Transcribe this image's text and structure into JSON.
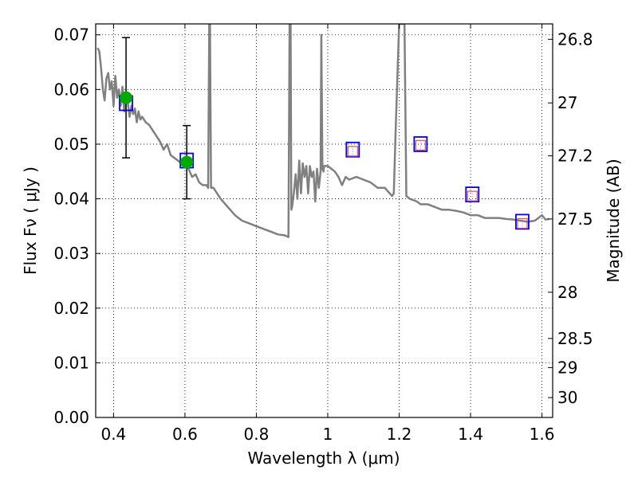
{
  "chart_data": {
    "type": "line",
    "xlabel": "Wavelength  λ (μm)",
    "ylabel": "Flux  Fν  ( μJy )",
    "ylabel_right": "Magnitude (AB)",
    "xlim": [
      0.35,
      1.63
    ],
    "ylim": [
      0.0,
      0.072
    ],
    "grid": true,
    "x_ticks": [
      {
        "value": 0.4,
        "label": "0.4"
      },
      {
        "value": 0.6,
        "label": "0.6"
      },
      {
        "value": 0.8,
        "label": "0.8"
      },
      {
        "value": 1.0,
        "label": "1"
      },
      {
        "value": 1.2,
        "label": "1.2"
      },
      {
        "value": 1.4,
        "label": "1.4"
      },
      {
        "value": 1.6,
        "label": "1.6"
      }
    ],
    "y_ticks": [
      {
        "value": 0.0,
        "label": "0.00"
      },
      {
        "value": 0.01,
        "label": "0.01"
      },
      {
        "value": 0.02,
        "label": "0.02"
      },
      {
        "value": 0.03,
        "label": "0.03"
      },
      {
        "value": 0.04,
        "label": "0.04"
      },
      {
        "value": 0.05,
        "label": "0.05"
      },
      {
        "value": 0.06,
        "label": "0.06"
      },
      {
        "value": 0.07,
        "label": "0.07"
      }
    ],
    "mag_ticks": [
      {
        "mag": 26.8,
        "label": "26.8"
      },
      {
        "mag": 27.0,
        "label": "27"
      },
      {
        "mag": 27.2,
        "label": "27.2"
      },
      {
        "mag": 27.5,
        "label": "27.5"
      },
      {
        "mag": 28.0,
        "label": "28"
      },
      {
        "mag": 28.5,
        "label": "28.5"
      },
      {
        "mag": 29.0,
        "label": "29"
      },
      {
        "mag": 30.0,
        "label": "30"
      }
    ],
    "model_sed": {
      "color": "#808080",
      "x": [
        0.355,
        0.36,
        0.365,
        0.37,
        0.375,
        0.38,
        0.385,
        0.39,
        0.395,
        0.4,
        0.405,
        0.41,
        0.415,
        0.42,
        0.425,
        0.43,
        0.435,
        0.44,
        0.445,
        0.45,
        0.455,
        0.46,
        0.465,
        0.47,
        0.475,
        0.48,
        0.49,
        0.5,
        0.51,
        0.52,
        0.53,
        0.54,
        0.55,
        0.56,
        0.57,
        0.58,
        0.59,
        0.6,
        0.61,
        0.62,
        0.63,
        0.64,
        0.65,
        0.66,
        0.665,
        0.668,
        0.67,
        0.673,
        0.68,
        0.7,
        0.72,
        0.74,
        0.76,
        0.78,
        0.8,
        0.82,
        0.84,
        0.86,
        0.88,
        0.89,
        0.893,
        0.896,
        0.898,
        0.9,
        0.905,
        0.91,
        0.915,
        0.92,
        0.925,
        0.93,
        0.935,
        0.94,
        0.945,
        0.95,
        0.955,
        0.96,
        0.965,
        0.97,
        0.975,
        0.98,
        0.982,
        0.985,
        0.988,
        0.99,
        1.0,
        1.01,
        1.02,
        1.03,
        1.04,
        1.05,
        1.06,
        1.08,
        1.1,
        1.12,
        1.14,
        1.16,
        1.18,
        1.185,
        1.19,
        1.2,
        1.205,
        1.215,
        1.22,
        1.23,
        1.25,
        1.26,
        1.28,
        1.3,
        1.32,
        1.34,
        1.36,
        1.38,
        1.4,
        1.42,
        1.44,
        1.46,
        1.48,
        1.5,
        1.52,
        1.54,
        1.56,
        1.58,
        1.59,
        1.6,
        1.61,
        1.62
      ],
      "y": [
        0.0676,
        0.067,
        0.064,
        0.06,
        0.058,
        0.062,
        0.063,
        0.06,
        0.0615,
        0.057,
        0.0625,
        0.0585,
        0.06,
        0.057,
        0.0605,
        0.056,
        0.059,
        0.0575,
        0.055,
        0.057,
        0.0555,
        0.0565,
        0.054,
        0.056,
        0.0545,
        0.055,
        0.054,
        0.0535,
        0.0525,
        0.0515,
        0.0505,
        0.049,
        0.05,
        0.048,
        0.0475,
        0.047,
        0.0465,
        0.046,
        0.0455,
        0.044,
        0.0445,
        0.043,
        0.0425,
        0.0425,
        0.042,
        0.072,
        0.072,
        0.042,
        0.042,
        0.04,
        0.0385,
        0.037,
        0.036,
        0.0355,
        0.035,
        0.0345,
        0.034,
        0.0335,
        0.0333,
        0.033,
        0.072,
        0.072,
        0.038,
        0.0385,
        0.041,
        0.0445,
        0.04,
        0.047,
        0.041,
        0.0465,
        0.044,
        0.046,
        0.041,
        0.046,
        0.044,
        0.045,
        0.0395,
        0.0455,
        0.042,
        0.045,
        0.07,
        0.0455,
        0.045,
        0.046,
        0.046,
        0.0455,
        0.045,
        0.044,
        0.0425,
        0.044,
        0.0435,
        0.044,
        0.0435,
        0.043,
        0.042,
        0.042,
        0.0405,
        0.041,
        0.052,
        0.072,
        0.072,
        0.072,
        0.0405,
        0.04,
        0.0395,
        0.039,
        0.039,
        0.0385,
        0.038,
        0.038,
        0.0378,
        0.0375,
        0.037,
        0.037,
        0.0365,
        0.0365,
        0.0365,
        0.0363,
        0.0362,
        0.036,
        0.0358,
        0.036,
        0.0365,
        0.037,
        0.0362,
        0.0363
      ]
    },
    "model_band_points": {
      "marker": "open-square",
      "color": "#0000ff",
      "x": [
        0.435,
        0.605,
        1.07,
        1.26,
        1.405,
        1.545
      ],
      "y": [
        0.0575,
        0.047,
        0.049,
        0.05,
        0.0408,
        0.0358
      ]
    },
    "observed_points": {
      "marker": "filled-circle",
      "color": "#00aa00",
      "x": [
        0.435,
        0.605
      ],
      "y": [
        0.0585,
        0.0467
      ],
      "err": [
        0.011,
        0.0067
      ]
    },
    "upper_limit_points": {
      "marker": "small-open-square",
      "color": "#e05050",
      "x": [
        1.07,
        1.26,
        1.405,
        1.545
      ],
      "y": [
        0.0487,
        0.0498,
        0.0405,
        0.0355
      ]
    }
  }
}
